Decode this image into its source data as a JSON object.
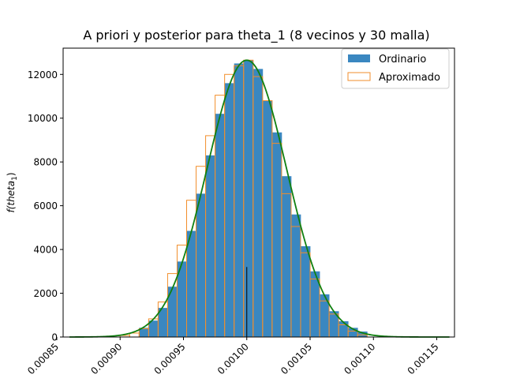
{
  "chart_data": {
    "type": "bar",
    "title": "A priori y posterior para theta_1 (8 vecinos y 30 malla)",
    "xlabel": "",
    "ylabel_base": "f(theta",
    "ylabel_sub": "1",
    "ylabel_close": ")",
    "xlim": [
      0.000855,
      0.001164
    ],
    "ylim": [
      0,
      13200
    ],
    "x_ticks": [
      0.00085,
      0.0009,
      0.00095,
      0.001,
      0.00105,
      0.0011,
      0.00115
    ],
    "x_tick_labels": [
      "0.00085",
      "0.00090",
      "0.00095",
      "0.00100",
      "0.00105",
      "0.00110",
      "0.00115"
    ],
    "y_ticks": [
      0,
      2000,
      4000,
      6000,
      8000,
      10000,
      12000
    ],
    "y_tick_labels": [
      "0",
      "2000",
      "4000",
      "6000",
      "8000",
      "10000",
      "12000"
    ],
    "bin_width": 7.5e-06,
    "series": [
      {
        "name": "Ordinario",
        "kind": "filled-histogram",
        "color": "#3a87c0",
        "bins": [
          [
            0.000915,
            420
          ],
          [
            0.0009225,
            750
          ],
          [
            0.00093,
            1330
          ],
          [
            0.0009375,
            2300
          ],
          [
            0.000945,
            3450
          ],
          [
            0.0009525,
            4850
          ],
          [
            0.00096,
            6550
          ],
          [
            0.0009675,
            8300
          ],
          [
            0.000975,
            10200
          ],
          [
            0.0009825,
            11600
          ],
          [
            0.00099,
            12500
          ],
          [
            0.0009975,
            12650
          ],
          [
            0.001005,
            12250
          ],
          [
            0.0010125,
            10800
          ],
          [
            0.00102,
            9350
          ],
          [
            0.0010275,
            7350
          ],
          [
            0.001035,
            5600
          ],
          [
            0.0010425,
            4150
          ],
          [
            0.00105,
            3000
          ],
          [
            0.0010575,
            1950
          ],
          [
            0.001065,
            1180
          ],
          [
            0.0010725,
            720
          ],
          [
            0.00108,
            420
          ],
          [
            0.0010875,
            250
          ]
        ]
      },
      {
        "name": "Aproximado",
        "kind": "step-histogram",
        "color": "#f28e2b",
        "bins": [
          [
            0.0009,
            70
          ],
          [
            0.0009075,
            180
          ],
          [
            0.000915,
            380
          ],
          [
            0.0009225,
            830
          ],
          [
            0.00093,
            1600
          ],
          [
            0.0009375,
            2900
          ],
          [
            0.000945,
            4200
          ],
          [
            0.0009525,
            6250
          ],
          [
            0.00096,
            7800
          ],
          [
            0.0009675,
            9200
          ],
          [
            0.000975,
            11050
          ],
          [
            0.0009825,
            12000
          ],
          [
            0.00099,
            12400
          ],
          [
            0.0009975,
            12650
          ],
          [
            0.001005,
            11900
          ],
          [
            0.0010125,
            10800
          ],
          [
            0.00102,
            8850
          ],
          [
            0.0010275,
            6550
          ],
          [
            0.001035,
            5050
          ],
          [
            0.0010425,
            3850
          ],
          [
            0.00105,
            2650
          ],
          [
            0.0010575,
            1650
          ],
          [
            0.001065,
            1050
          ],
          [
            0.0010725,
            560
          ],
          [
            0.00108,
            270
          ],
          [
            0.0010875,
            100
          ]
        ]
      },
      {
        "kind": "density-curve",
        "color": "#108010",
        "mean": 0.001,
        "sd": 3.15e-05,
        "peak": 12650,
        "x_range": [
          0.00086,
          0.00116
        ]
      },
      {
        "kind": "vertical-marker",
        "color": "#000000",
        "x": 0.001,
        "y_top": 3200
      }
    ],
    "legend": {
      "position": "upper right",
      "entries": [
        "Ordinario",
        "Aproximado"
      ]
    }
  }
}
